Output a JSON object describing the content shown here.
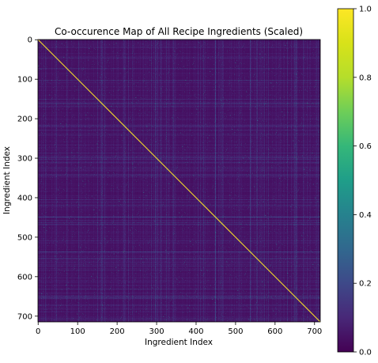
{
  "chart_data": {
    "type": "heatmap",
    "title": "Co-occurence Map of All Recipe Ingredients (Scaled)",
    "xlabel": "Ingredient Index",
    "ylabel": "Ingredient Index",
    "n_ingredients": 715,
    "xlim": [
      0,
      715
    ],
    "ylim": [
      715,
      0
    ],
    "xticks": [
      0,
      100,
      200,
      300,
      400,
      500,
      600,
      700
    ],
    "yticks": [
      0,
      100,
      200,
      300,
      400,
      500,
      600,
      700
    ],
    "diagonal_value": 1.0,
    "typical_offdiagonal_value": 0.08,
    "colormap": "viridis",
    "colorbar": {
      "range": [
        0.0,
        1.0
      ],
      "ticks": [
        0.0,
        0.2,
        0.4,
        0.6,
        0.8,
        1.0
      ],
      "tick_labels": [
        "0.0",
        "0.2",
        "0.4",
        "0.6",
        "0.8",
        "1.0"
      ]
    },
    "grid": false
  }
}
